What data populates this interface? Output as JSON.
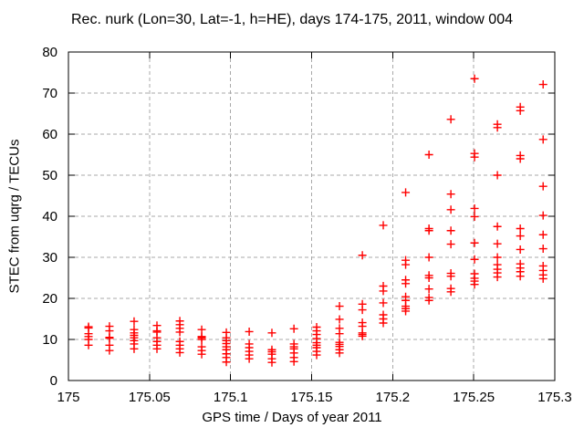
{
  "colors": {
    "marker": "#ff0000",
    "grid": "#a9a9a9",
    "axis": "#000000",
    "background": "#ffffff",
    "text": "#000000"
  },
  "chart_data": {
    "type": "scatter",
    "title": "Rec. nurk (Lon=30, Lat=-1, h=HE), days 174-175, 2011, window 004",
    "xlabel": "GPS time / Days of year 2011",
    "ylabel": "STEC from uqrg / TECUs",
    "xlim": [
      175,
      175.3
    ],
    "ylim": [
      0,
      80
    ],
    "xticks": [
      175,
      175.05,
      175.1,
      175.15,
      175.2,
      175.25,
      175.3
    ],
    "xtick_labels": [
      "175",
      "175.05",
      "175.1",
      "175.15",
      "175.2",
      "175.25",
      "175.3"
    ],
    "yticks": [
      0,
      10,
      20,
      30,
      40,
      50,
      60,
      70,
      80
    ],
    "ytick_labels": [
      "0",
      "10",
      "20",
      "30",
      "40",
      "50",
      "60",
      "70",
      "80"
    ],
    "grid": true,
    "grid_style": "dashed",
    "legend": "none",
    "marker": {
      "shape": "plus",
      "color": "#ff0000",
      "size": 9
    },
    "series": [
      {
        "name": "STEC observations",
        "points": [
          {
            "x": 175.0124,
            "ys": [
              13.1,
              12.8,
              11.4,
              10.7,
              10.0,
              8.6
            ]
          },
          {
            "x": 175.0253,
            "ys": [
              13.2,
              12.1,
              10.5,
              10.3,
              8.6,
              7.3
            ]
          },
          {
            "x": 175.0405,
            "ys": [
              14.4,
              12.4,
              11.6,
              11.0,
              10.4,
              9.7,
              8.9,
              7.7
            ]
          },
          {
            "x": 175.0546,
            "ys": [
              13.4,
              12.1,
              11.8,
              10.4,
              9.5,
              8.6,
              7.7
            ]
          },
          {
            "x": 175.0687,
            "ys": [
              14.5,
              13.6,
              12.7,
              11.8,
              9.5,
              8.6,
              7.7,
              6.8
            ]
          },
          {
            "x": 175.0822,
            "ys": [
              12.4,
              10.7,
              10.4,
              10.0,
              8.2,
              7.3,
              6.4
            ]
          },
          {
            "x": 175.0974,
            "ys": [
              11.7,
              10.4,
              9.7,
              9.0,
              8.2,
              7.5,
              6.5,
              5.6,
              4.5
            ]
          },
          {
            "x": 175.1115,
            "ys": [
              11.9,
              8.9,
              8.0,
              7.1,
              6.2,
              5.3
            ]
          },
          {
            "x": 175.1255,
            "ys": [
              11.6,
              7.5,
              7.0,
              6.4,
              5.3,
              4.4
            ]
          },
          {
            "x": 175.1391,
            "ys": [
              12.6,
              8.9,
              8.2,
              7.7,
              6.7,
              5.6,
              4.6
            ]
          },
          {
            "x": 175.1531,
            "ys": [
              13.0,
              12.1,
              11.2,
              10.2,
              9.2,
              8.6,
              8.0,
              7.1,
              6.2
            ]
          },
          {
            "x": 175.1672,
            "ys": [
              18.1,
              14.9,
              12.7,
              11.4,
              9.3,
              8.8,
              8.3,
              7.5,
              6.7
            ]
          },
          {
            "x": 175.1813,
            "ys": [
              30.5,
              18.6,
              17.2,
              14.1,
              13.2,
              11.6,
              11.2,
              10.8
            ]
          },
          {
            "x": 175.1942,
            "ys": [
              37.8,
              23.0,
              21.8,
              18.9,
              16.0,
              15.0,
              14.0
            ]
          },
          {
            "x": 175.208,
            "ys": [
              45.8,
              29.3,
              28.2,
              24.5,
              23.6,
              20.4,
              19.5,
              18.1,
              17.5,
              16.9
            ]
          },
          {
            "x": 175.2224,
            "ys": [
              55.0,
              37.0,
              36.5,
              30.0,
              25.6,
              25.0,
              22.3,
              20.2,
              19.5
            ]
          },
          {
            "x": 175.2359,
            "ys": [
              63.6,
              45.4,
              41.6,
              36.5,
              33.2,
              26.1,
              25.4,
              22.4,
              21.6
            ]
          },
          {
            "x": 175.2505,
            "ys": [
              73.5,
              55.3,
              54.4,
              41.9,
              39.9,
              33.5,
              29.5,
              26.0,
              24.9,
              24.2,
              23.4
            ]
          },
          {
            "x": 175.2646,
            "ys": [
              62.4,
              61.6,
              50.0,
              37.5,
              33.3,
              30.0,
              28.2,
              27.1,
              26.2,
              25.2
            ]
          },
          {
            "x": 175.2787,
            "ys": [
              66.6,
              65.7,
              54.8,
              54.0,
              37.0,
              35.2,
              31.9,
              28.4,
              27.4,
              26.5,
              25.4
            ]
          },
          {
            "x": 175.2928,
            "ys": [
              72.1,
              58.7,
              47.3,
              40.2,
              35.5,
              32.1,
              27.9,
              26.8,
              25.7,
              24.8
            ]
          }
        ]
      }
    ]
  }
}
